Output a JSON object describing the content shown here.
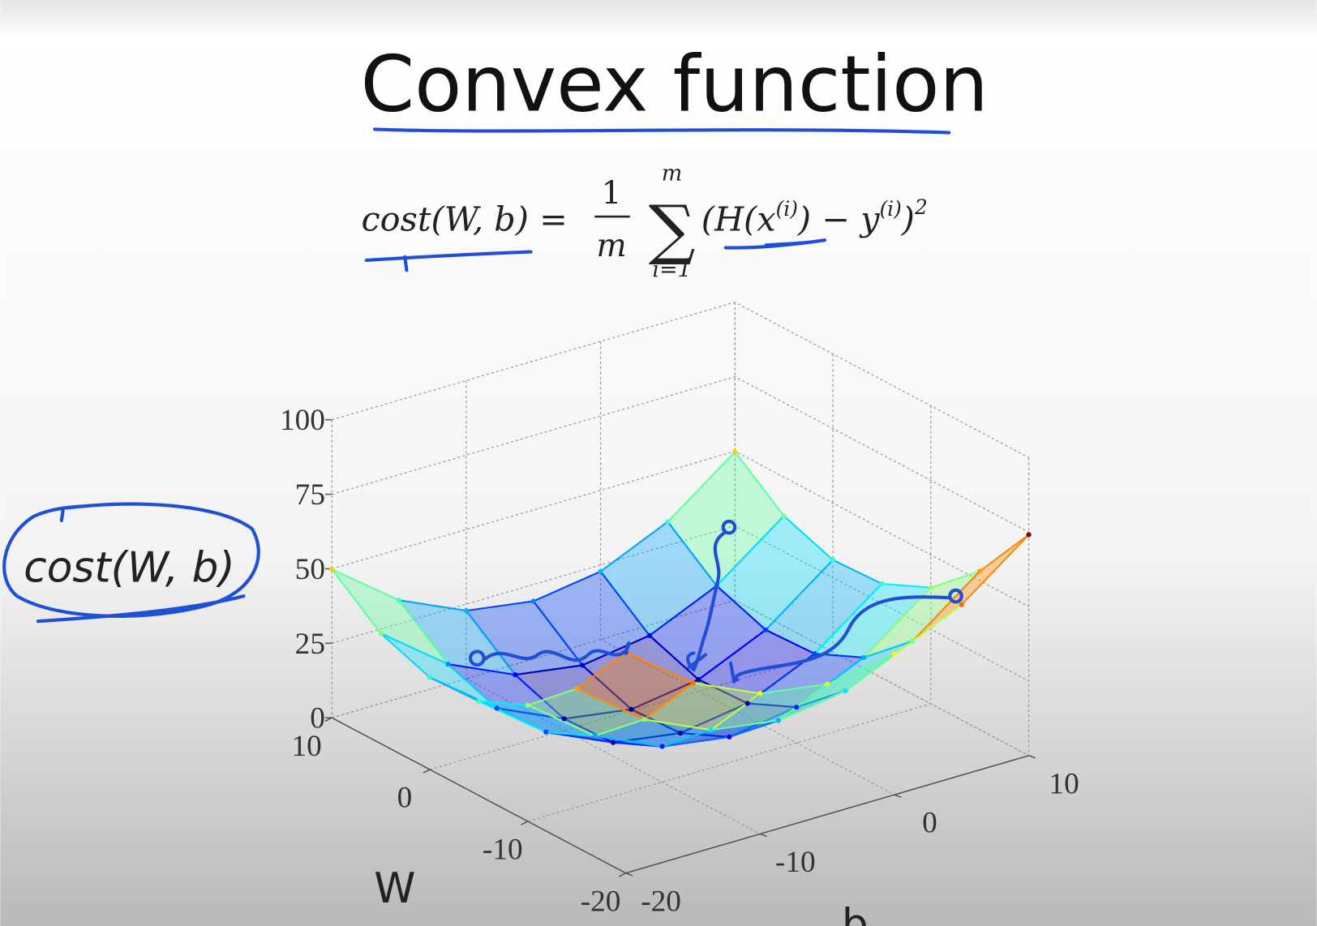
{
  "chart_data": {
    "type": "surface3d",
    "title": "Convex function",
    "formula": {
      "lhs": "cost(W, b) =",
      "numerator": "1",
      "denominator": "m",
      "sigma": "∑",
      "upper": "m",
      "lower": "i=1",
      "body_1": "(H(x",
      "sup_1": "(i)",
      "body_2": ") − y",
      "sup_2": "(i)",
      "body_3": ")",
      "sup_3": "2"
    },
    "x_label": "W",
    "y_label": "b",
    "z_label": "cost(W, b)",
    "xlim": [
      -20,
      10
    ],
    "xticks": [
      -20,
      -10,
      0,
      10
    ],
    "ylim": [
      -20,
      10
    ],
    "yticks": [
      -20,
      -10,
      0,
      10
    ],
    "zlim": [
      0,
      100
    ],
    "zticks": [
      0,
      25,
      50,
      75,
      100
    ],
    "grid": true,
    "colormap": "jet",
    "x": [
      -20,
      -15,
      -10,
      -5,
      0,
      5,
      10
    ],
    "y": [
      -20,
      -15,
      -10,
      -5,
      0,
      5,
      10
    ],
    "z": [
      [
        74.1,
        57.2,
        47.1,
        43.7,
        47.1,
        57.2,
        74.1
      ],
      [
        53.2,
        36.3,
        26.2,
        22.8,
        26.2,
        36.3,
        53.2
      ],
      [
        39.0,
        22.1,
        12.0,
        8.6,
        12.0,
        22.1,
        39.0
      ],
      [
        31.6,
        14.7,
        4.6,
        1.2,
        4.6,
        14.7,
        31.6
      ],
      [
        30.9,
        14.0,
        3.9,
        0.5,
        3.9,
        14.0,
        30.9
      ],
      [
        37.0,
        20.1,
        10.0,
        6.6,
        10.0,
        20.1,
        37.0
      ],
      [
        49.8,
        32.9,
        22.8,
        19.4,
        22.8,
        32.9,
        49.8
      ]
    ]
  }
}
